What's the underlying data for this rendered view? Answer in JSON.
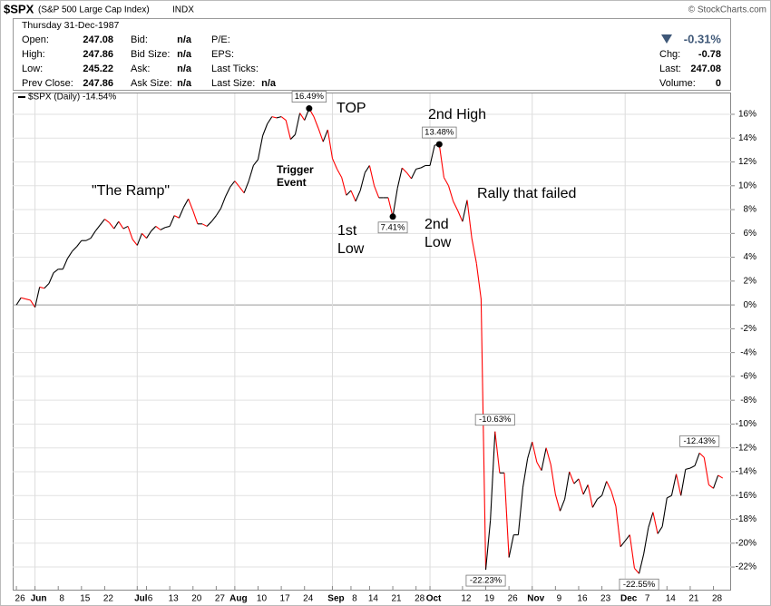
{
  "header": {
    "symbol": "$SPX",
    "name": "(S&P 500 Large Cap Index)",
    "exchange": "INDX",
    "source": "© StockCharts.com",
    "date": "Thursday  31-Dec-1987",
    "quote": [
      [
        "Open:",
        "247.08"
      ],
      [
        "High:",
        "247.86"
      ],
      [
        "Low:",
        "245.22"
      ],
      [
        "Prev Close:",
        "247.86"
      ]
    ],
    "book": [
      [
        "Bid:",
        "n/a"
      ],
      [
        "Bid Size:",
        "n/a"
      ],
      [
        "Ask:",
        "n/a"
      ],
      [
        "Ask Size:",
        "n/a"
      ]
    ],
    "fundamentals": [
      "P/E:",
      "EPS:",
      "Last Ticks:"
    ],
    "last_size": [
      "Last Size:",
      "n/a"
    ],
    "change_pct": "-0.31%",
    "stats": [
      [
        "Chg:",
        "-0.78"
      ],
      [
        "Last:",
        "247.08"
      ],
      [
        "Volume:",
        "0"
      ]
    ]
  },
  "chart_data": {
    "type": "line",
    "series": [
      {
        "name": "$SPX (Daily) -14.54%",
        "up_color": "#000000",
        "down_color": "#ff0000",
        "x": [
          0,
          1,
          2,
          3,
          4,
          5,
          6,
          7,
          8,
          9,
          10,
          11,
          12,
          13,
          14,
          15,
          16,
          17,
          18,
          19,
          20,
          21,
          22,
          23,
          24,
          25,
          26,
          27,
          28,
          29,
          30,
          31,
          32,
          33,
          34,
          35,
          36,
          37,
          38,
          39,
          40,
          41,
          42,
          43,
          44,
          45,
          46,
          47,
          48,
          49,
          50,
          51,
          52,
          53,
          54,
          55,
          56,
          57,
          58,
          59,
          60,
          61,
          62,
          63,
          64,
          65,
          66,
          67,
          68,
          69,
          70,
          71,
          72,
          73,
          74,
          75,
          76,
          77,
          78,
          79,
          80,
          81,
          82,
          83,
          84,
          85,
          86,
          87,
          88,
          89,
          90,
          91,
          92,
          93,
          94,
          95,
          96,
          97,
          98,
          99,
          100,
          101,
          102,
          103,
          104,
          105,
          106,
          107,
          108,
          109,
          110,
          111,
          112,
          113,
          114,
          115,
          116,
          117,
          118,
          119,
          120,
          121,
          122,
          123,
          124,
          125,
          126,
          127,
          128,
          129,
          130,
          131,
          132,
          133,
          134,
          135,
          136,
          137,
          138,
          139,
          140,
          141,
          142,
          143,
          144,
          145,
          146,
          147,
          148,
          149,
          150,
          151,
          152
        ],
        "values": [
          0,
          0.6,
          0.5,
          0.4,
          -0.2,
          1.5,
          1.4,
          1.8,
          2.7,
          3.0,
          3.0,
          3.9,
          4.5,
          4.9,
          5.4,
          5.4,
          5.6,
          6.2,
          6.7,
          7.2,
          6.9,
          6.4,
          7.0,
          6.4,
          6.6,
          5.5,
          5.0,
          6.0,
          5.6,
          6.2,
          6.6,
          6.3,
          6.5,
          6.6,
          7.5,
          7.3,
          8.2,
          8.9,
          7.9,
          6.8,
          6.8,
          6.6,
          7.0,
          7.5,
          8.1,
          9.1,
          9.9,
          10.4,
          9.9,
          9.4,
          10.4,
          11.7,
          12.2,
          14.2,
          15.2,
          15.8,
          15.7,
          15.8,
          15.5,
          13.9,
          14.3,
          16.1,
          15.5,
          16.49,
          15.8,
          14.8,
          13.7,
          14.7,
          12.3,
          11.4,
          10.7,
          9.2,
          9.6,
          8.7,
          9.6,
          11.1,
          11.7,
          10.0,
          9.0,
          9.0,
          9.0,
          7.41,
          9.8,
          11.5,
          11.1,
          10.6,
          11.4,
          11.5,
          11.7,
          11.7,
          13.4,
          13.48,
          10.7,
          10.0,
          8.7,
          7.9,
          7.0,
          8.8,
          5.6,
          3.5,
          0.5,
          -22.23,
          -18.1,
          -10.63,
          -14.1,
          -14.1,
          -21.2,
          -19.3,
          -19.3,
          -15.3,
          -12.9,
          -11.5,
          -13.2,
          -13.9,
          -12.0,
          -13.4,
          -15.9,
          -17.3,
          -16.3,
          -14.0,
          -15.0,
          -14.6,
          -15.9,
          -15.1,
          -17.0,
          -16.3,
          -16.0,
          -14.8,
          -15.6,
          -16.9,
          -20.3,
          -19.8,
          -19.3,
          -22.1,
          -22.55,
          -20.9,
          -18.7,
          -17.4,
          -19.2,
          -18.6,
          -16.2,
          -16.0,
          -14.2,
          -16.0,
          -13.8,
          -13.7,
          -13.5,
          -12.43,
          -12.8,
          -15.1,
          -15.4,
          -14.3,
          -14.54
        ],
        "value_labels": [
          null,
          null,
          null,
          null,
          null,
          null,
          null,
          null,
          null,
          null,
          null,
          null,
          null,
          null,
          null,
          null,
          null,
          null,
          null,
          null,
          null,
          null,
          null,
          null,
          null,
          null,
          null,
          null,
          null,
          null,
          null,
          null,
          null,
          null,
          null,
          null,
          null,
          null,
          null,
          null,
          null,
          null,
          null,
          null,
          null,
          null,
          null,
          null,
          null,
          null,
          null,
          null,
          null,
          null,
          null,
          null,
          null,
          null,
          null,
          null,
          null,
          null,
          null,
          "16.49%",
          null,
          null,
          null,
          null,
          null,
          null,
          null,
          null,
          null,
          null,
          null,
          null,
          null,
          null,
          null,
          null,
          null,
          "7.41%",
          null,
          null,
          null,
          null,
          null,
          null,
          null,
          null,
          null,
          "13.48%",
          null,
          null,
          null,
          null,
          null,
          null,
          null,
          null,
          null,
          "-22.23%",
          null,
          "-10.63%",
          null,
          null,
          null,
          null,
          null,
          null,
          null,
          null,
          null,
          null,
          null,
          null,
          null,
          null,
          null,
          null,
          null,
          null,
          null,
          null,
          null,
          null,
          null,
          null,
          null,
          null,
          null,
          null,
          null,
          null,
          "-22.55%",
          null,
          null,
          null,
          null,
          null,
          null,
          null,
          null,
          null,
          null,
          null,
          null,
          "-12.43%",
          null,
          null,
          null,
          null,
          null
        ]
      }
    ],
    "annotations": [
      "TOP",
      "2nd High",
      "\"The Ramp\"",
      "Trigger",
      "Event",
      "1st",
      "Low",
      "2nd",
      "Low",
      "Rally that failed"
    ],
    "xlim": [
      -0.8,
      153.8
    ],
    "ylim": [
      -23.9,
      17.75
    ],
    "xticks": [
      {
        "value": 0,
        "label": "26"
      },
      {
        "value": 4,
        "label": "Jun"
      },
      {
        "value": 9,
        "label": "8"
      },
      {
        "value": 14,
        "label": "15"
      },
      {
        "value": 19,
        "label": "22"
      },
      {
        "value": 26,
        "label": "Jul"
      },
      {
        "value": 28,
        "label": "6"
      },
      {
        "value": 33,
        "label": "13"
      },
      {
        "value": 38,
        "label": "20"
      },
      {
        "value": 43,
        "label": "27"
      },
      {
        "value": 47,
        "label": "Aug"
      },
      {
        "value": 52,
        "label": "10"
      },
      {
        "value": 57,
        "label": "17"
      },
      {
        "value": 62,
        "label": "24"
      },
      {
        "value": 68,
        "label": "Sep"
      },
      {
        "value": 72,
        "label": "8"
      },
      {
        "value": 76,
        "label": "14"
      },
      {
        "value": 81,
        "label": "21"
      },
      {
        "value": 86,
        "label": "28"
      },
      {
        "value": 89,
        "label": "Oct"
      },
      {
        "value": 96,
        "label": "12"
      },
      {
        "value": 101,
        "label": "19"
      },
      {
        "value": 106,
        "label": "26"
      },
      {
        "value": 111,
        "label": "Nov"
      },
      {
        "value": 116,
        "label": "9"
      },
      {
        "value": 121,
        "label": "16"
      },
      {
        "value": 126,
        "label": "23"
      },
      {
        "value": 131,
        "label": "Dec"
      },
      {
        "value": 135,
        "label": "7"
      },
      {
        "value": 140,
        "label": "14"
      },
      {
        "value": 145,
        "label": "21"
      },
      {
        "value": 150,
        "label": "28"
      }
    ],
    "yticks": [
      {
        "value": 16,
        "label": "16%"
      },
      {
        "value": 14,
        "label": "14%"
      },
      {
        "value": 12,
        "label": "12%"
      },
      {
        "value": 10,
        "label": "10%"
      },
      {
        "value": 8,
        "label": "8%"
      },
      {
        "value": 6,
        "label": "6%"
      },
      {
        "value": 4,
        "label": "4%"
      },
      {
        "value": 2,
        "label": "2%"
      },
      {
        "value": 0,
        "label": "0%"
      },
      {
        "value": -2,
        "label": "-2%"
      },
      {
        "value": -4,
        "label": "-4%"
      },
      {
        "value": -6,
        "label": "-6%"
      },
      {
        "value": -8,
        "label": "-8%"
      },
      {
        "value": -10,
        "label": "-10%"
      },
      {
        "value": -12,
        "label": "-12%"
      },
      {
        "value": -14,
        "label": "-14%"
      },
      {
        "value": -16,
        "label": "-16%"
      },
      {
        "value": -18,
        "label": "-18%"
      },
      {
        "value": -20,
        "label": "-20%"
      },
      {
        "value": -22,
        "label": "-22%"
      }
    ],
    "grid": true
  }
}
